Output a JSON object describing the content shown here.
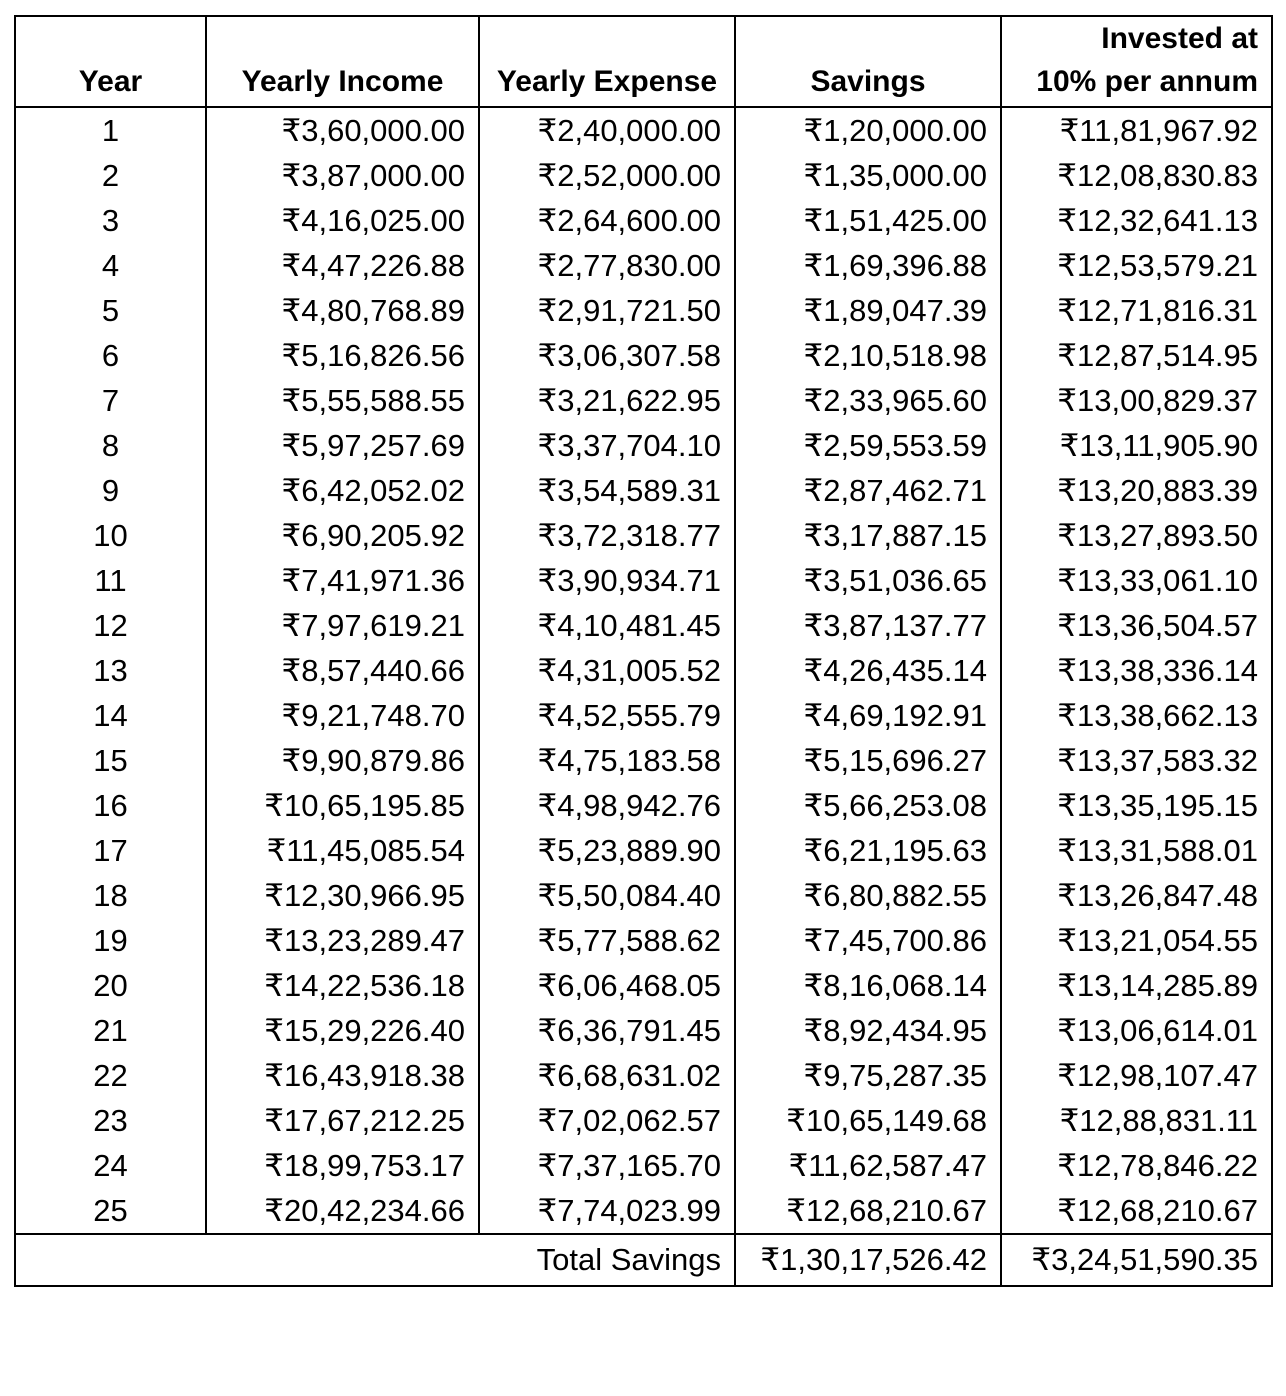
{
  "table": {
    "headers": {
      "year": "Year",
      "income": "Yearly Income",
      "expense": "Yearly Expense",
      "savings": "Savings",
      "invested_line1": "Invested at",
      "invested_line2": "10% per annum"
    },
    "rows": [
      {
        "year": "1",
        "income": "₹3,60,000.00",
        "expense": "₹2,40,000.00",
        "savings": "₹1,20,000.00",
        "invested": "₹11,81,967.92"
      },
      {
        "year": "2",
        "income": "₹3,87,000.00",
        "expense": "₹2,52,000.00",
        "savings": "₹1,35,000.00",
        "invested": "₹12,08,830.83"
      },
      {
        "year": "3",
        "income": "₹4,16,025.00",
        "expense": "₹2,64,600.00",
        "savings": "₹1,51,425.00",
        "invested": "₹12,32,641.13"
      },
      {
        "year": "4",
        "income": "₹4,47,226.88",
        "expense": "₹2,77,830.00",
        "savings": "₹1,69,396.88",
        "invested": "₹12,53,579.21"
      },
      {
        "year": "5",
        "income": "₹4,80,768.89",
        "expense": "₹2,91,721.50",
        "savings": "₹1,89,047.39",
        "invested": "₹12,71,816.31"
      },
      {
        "year": "6",
        "income": "₹5,16,826.56",
        "expense": "₹3,06,307.58",
        "savings": "₹2,10,518.98",
        "invested": "₹12,87,514.95"
      },
      {
        "year": "7",
        "income": "₹5,55,588.55",
        "expense": "₹3,21,622.95",
        "savings": "₹2,33,965.60",
        "invested": "₹13,00,829.37"
      },
      {
        "year": "8",
        "income": "₹5,97,257.69",
        "expense": "₹3,37,704.10",
        "savings": "₹2,59,553.59",
        "invested": "₹13,11,905.90"
      },
      {
        "year": "9",
        "income": "₹6,42,052.02",
        "expense": "₹3,54,589.31",
        "savings": "₹2,87,462.71",
        "invested": "₹13,20,883.39"
      },
      {
        "year": "10",
        "income": "₹6,90,205.92",
        "expense": "₹3,72,318.77",
        "savings": "₹3,17,887.15",
        "invested": "₹13,27,893.50"
      },
      {
        "year": "11",
        "income": "₹7,41,971.36",
        "expense": "₹3,90,934.71",
        "savings": "₹3,51,036.65",
        "invested": "₹13,33,061.10"
      },
      {
        "year": "12",
        "income": "₹7,97,619.21",
        "expense": "₹4,10,481.45",
        "savings": "₹3,87,137.77",
        "invested": "₹13,36,504.57"
      },
      {
        "year": "13",
        "income": "₹8,57,440.66",
        "expense": "₹4,31,005.52",
        "savings": "₹4,26,435.14",
        "invested": "₹13,38,336.14"
      },
      {
        "year": "14",
        "income": "₹9,21,748.70",
        "expense": "₹4,52,555.79",
        "savings": "₹4,69,192.91",
        "invested": "₹13,38,662.13"
      },
      {
        "year": "15",
        "income": "₹9,90,879.86",
        "expense": "₹4,75,183.58",
        "savings": "₹5,15,696.27",
        "invested": "₹13,37,583.32"
      },
      {
        "year": "16",
        "income": "₹10,65,195.85",
        "expense": "₹4,98,942.76",
        "savings": "₹5,66,253.08",
        "invested": "₹13,35,195.15"
      },
      {
        "year": "17",
        "income": "₹11,45,085.54",
        "expense": "₹5,23,889.90",
        "savings": "₹6,21,195.63",
        "invested": "₹13,31,588.01"
      },
      {
        "year": "18",
        "income": "₹12,30,966.95",
        "expense": "₹5,50,084.40",
        "savings": "₹6,80,882.55",
        "invested": "₹13,26,847.48"
      },
      {
        "year": "19",
        "income": "₹13,23,289.47",
        "expense": "₹5,77,588.62",
        "savings": "₹7,45,700.86",
        "invested": "₹13,21,054.55"
      },
      {
        "year": "20",
        "income": "₹14,22,536.18",
        "expense": "₹6,06,468.05",
        "savings": "₹8,16,068.14",
        "invested": "₹13,14,285.89"
      },
      {
        "year": "21",
        "income": "₹15,29,226.40",
        "expense": "₹6,36,791.45",
        "savings": "₹8,92,434.95",
        "invested": "₹13,06,614.01"
      },
      {
        "year": "22",
        "income": "₹16,43,918.38",
        "expense": "₹6,68,631.02",
        "savings": "₹9,75,287.35",
        "invested": "₹12,98,107.47"
      },
      {
        "year": "23",
        "income": "₹17,67,212.25",
        "expense": "₹7,02,062.57",
        "savings": "₹10,65,149.68",
        "invested": "₹12,88,831.11"
      },
      {
        "year": "24",
        "income": "₹18,99,753.17",
        "expense": "₹7,37,165.70",
        "savings": "₹11,62,587.47",
        "invested": "₹12,78,846.22"
      },
      {
        "year": "25",
        "income": "₹20,42,234.66",
        "expense": "₹7,74,023.99",
        "savings": "₹12,68,210.67",
        "invested": "₹12,68,210.67"
      }
    ],
    "total": {
      "label": "Total Savings",
      "savings": "₹1,30,17,526.42",
      "invested": "₹3,24,51,590.35"
    }
  }
}
